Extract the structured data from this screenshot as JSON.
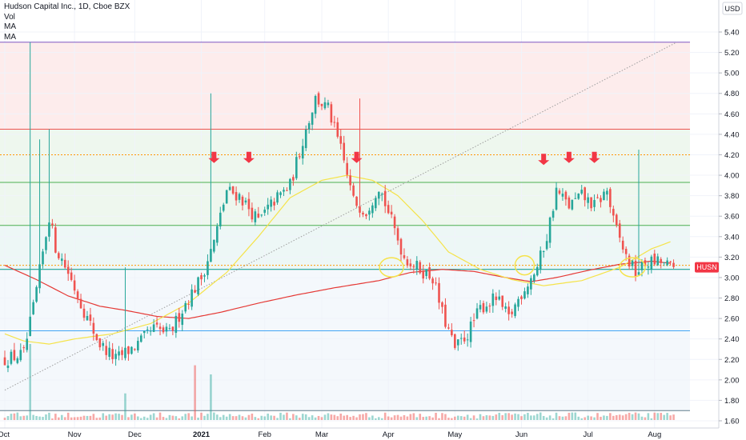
{
  "legend": {
    "title": "Hudson Capital Inc., 1D, Cboe BZX",
    "lines": [
      "Vol",
      "MA",
      "MA"
    ]
  },
  "axis": {
    "currency": "USD",
    "price_label": "HUSN",
    "current_price": 3.1
  },
  "colors": {
    "up": "#26a69a",
    "down": "#ef5350",
    "ma_slow": "#e53935",
    "ma_fast": "#f5e34a",
    "level": "#4caf50",
    "resistance": "#ef5350",
    "trendline": "#9e9e9e",
    "highlight": "#f5e34a",
    "arrow": "#f23645",
    "price_tag": "#f23645"
  },
  "chart_data": {
    "type": "candlestick",
    "y_ticks": [
      "1.60",
      "1.80",
      "2.00",
      "2.20",
      "2.40",
      "2.60",
      "2.80",
      "3.00",
      "3.20",
      "3.40",
      "3.60",
      "3.80",
      "4.00",
      "4.20",
      "4.40",
      "4.60",
      "4.80",
      "5.00",
      "5.20",
      "5.40"
    ],
    "ylim": [
      1.57,
      5.6
    ],
    "x_ticks": [
      {
        "label": "Oct",
        "bold": false
      },
      {
        "label": "Nov",
        "bold": false
      },
      {
        "label": "Dec",
        "bold": false
      },
      {
        "label": "2021",
        "bold": true
      },
      {
        "label": "Feb",
        "bold": false
      },
      {
        "label": "Mar",
        "bold": false
      },
      {
        "label": "Apr",
        "bold": false
      },
      {
        "label": "May",
        "bold": false
      },
      {
        "label": "Jun",
        "bold": false
      },
      {
        "label": "Jul",
        "bold": false
      },
      {
        "label": "Aug",
        "bold": false
      }
    ],
    "waypoints": [
      [
        0,
        2.2
      ],
      [
        6,
        2.25
      ],
      [
        9,
        2.7
      ],
      [
        14,
        3.6
      ],
      [
        16,
        3.3
      ],
      [
        20,
        3.05
      ],
      [
        26,
        2.6
      ],
      [
        30,
        2.35
      ],
      [
        35,
        2.2
      ],
      [
        42,
        2.35
      ],
      [
        47,
        2.5
      ],
      [
        52,
        2.45
      ],
      [
        57,
        2.75
      ],
      [
        62,
        3.0
      ],
      [
        66,
        3.35
      ],
      [
        70,
        3.85
      ],
      [
        74,
        3.8
      ],
      [
        80,
        3.55
      ],
      [
        85,
        3.75
      ],
      [
        90,
        3.9
      ],
      [
        95,
        4.45
      ],
      [
        98,
        4.75
      ],
      [
        102,
        4.65
      ],
      [
        106,
        4.25
      ],
      [
        110,
        3.75
      ],
      [
        114,
        3.65
      ],
      [
        118,
        3.9
      ],
      [
        122,
        3.55
      ],
      [
        126,
        3.2
      ],
      [
        130,
        3.1
      ],
      [
        135,
        3.0
      ],
      [
        138,
        2.65
      ],
      [
        142,
        2.3
      ],
      [
        146,
        2.45
      ],
      [
        150,
        2.7
      ],
      [
        155,
        2.8
      ],
      [
        159,
        2.6
      ],
      [
        163,
        2.85
      ],
      [
        168,
        3.1
      ],
      [
        171,
        3.4
      ],
      [
        174,
        3.85
      ],
      [
        178,
        3.7
      ],
      [
        182,
        3.8
      ],
      [
        186,
        3.7
      ],
      [
        190,
        3.85
      ],
      [
        192,
        3.55
      ],
      [
        196,
        3.2
      ],
      [
        199,
        3.05
      ],
      [
        203,
        3.15
      ],
      [
        207,
        3.15
      ],
      [
        210,
        3.1
      ]
    ],
    "spikes": [
      {
        "i": 8,
        "high": 5.3
      },
      {
        "i": 11,
        "high": 4.35
      },
      {
        "i": 14,
        "high": 4.45
      },
      {
        "i": 38,
        "high": 3.1
      },
      {
        "i": 65,
        "high": 4.8
      },
      {
        "i": 112,
        "high": 4.75
      },
      {
        "i": 200,
        "high": 4.25
      }
    ],
    "vol_spikes": [
      {
        "i": 8,
        "v": 1.0
      },
      {
        "i": 38,
        "v": 0.35
      },
      {
        "i": 60,
        "v": 0.72
      },
      {
        "i": 65,
        "v": 0.6
      }
    ],
    "ma_fast": [
      [
        0,
        2.45
      ],
      [
        6,
        2.38
      ],
      [
        14,
        2.35
      ],
      [
        22,
        2.4
      ],
      [
        34,
        2.45
      ],
      [
        46,
        2.55
      ],
      [
        58,
        2.75
      ],
      [
        70,
        3.05
      ],
      [
        80,
        3.4
      ],
      [
        90,
        3.78
      ],
      [
        100,
        3.95
      ],
      [
        108,
        4.0
      ],
      [
        116,
        3.95
      ],
      [
        124,
        3.8
      ],
      [
        132,
        3.55
      ],
      [
        140,
        3.25
      ],
      [
        150,
        3.08
      ],
      [
        160,
        2.98
      ],
      [
        170,
        2.92
      ],
      [
        182,
        2.97
      ],
      [
        194,
        3.1
      ],
      [
        204,
        3.28
      ],
      [
        210,
        3.35
      ]
    ],
    "ma_slow": [
      [
        0,
        3.12
      ],
      [
        10,
        2.98
      ],
      [
        20,
        2.82
      ],
      [
        30,
        2.72
      ],
      [
        38,
        2.68
      ],
      [
        48,
        2.62
      ],
      [
        58,
        2.6
      ],
      [
        68,
        2.66
      ],
      [
        80,
        2.75
      ],
      [
        92,
        2.83
      ],
      [
        104,
        2.9
      ],
      [
        118,
        2.97
      ],
      [
        128,
        3.05
      ],
      [
        138,
        3.08
      ],
      [
        148,
        3.06
      ],
      [
        158,
        3.0
      ],
      [
        166,
        2.96
      ],
      [
        174,
        3.0
      ],
      [
        184,
        3.07
      ],
      [
        194,
        3.13
      ],
      [
        204,
        3.16
      ],
      [
        210,
        3.14
      ]
    ],
    "levels": [
      {
        "price": 5.3,
        "color": "#7e57c2",
        "dash": false
      },
      {
        "price": 4.45,
        "color": "#ef5350",
        "dash": false
      },
      {
        "price": 4.2,
        "color": "#ff9800",
        "dash": true
      },
      {
        "price": 3.93,
        "color": "#4caf50",
        "dash": false
      },
      {
        "price": 3.51,
        "color": "#4caf50",
        "dash": false
      },
      {
        "price": 3.12,
        "color": "#ff9800",
        "dash": true
      },
      {
        "price": 3.08,
        "color": "#009688",
        "dash": false
      },
      {
        "price": 2.48,
        "color": "#42a5f5",
        "dash": false
      },
      {
        "price": 1.7,
        "color": "#607d8b",
        "dash": false
      }
    ],
    "zones": [
      {
        "from": 4.45,
        "to": 5.3,
        "color": "#fdecec"
      },
      {
        "from": 3.51,
        "to": 4.45,
        "color": "#eef7ee"
      },
      {
        "from": 3.08,
        "to": 3.51,
        "color": "#edf7f6"
      },
      {
        "from": 1.7,
        "to": 3.08,
        "color": "#f4f8fc"
      }
    ],
    "trendline": {
      "i1": 0,
      "p1": 1.9,
      "i2": 212,
      "p2": 5.3
    },
    "arrows": [
      {
        "i": 66,
        "price": 4.12
      },
      {
        "i": 77,
        "price": 4.12
      },
      {
        "i": 111,
        "price": 4.12
      },
      {
        "i": 170,
        "price": 4.1
      },
      {
        "i": 178,
        "price": 4.12
      },
      {
        "i": 186,
        "price": 4.12
      }
    ],
    "ellipses": [
      {
        "i": 122,
        "price": 3.1,
        "rx": 15,
        "ry": 12
      },
      {
        "i": 164,
        "price": 3.12,
        "rx": 12,
        "ry": 12
      },
      {
        "i": 198,
        "price": 3.1,
        "rx": 16,
        "ry": 12
      }
    ],
    "x_tick_indices": [
      0,
      22,
      41,
      62,
      82,
      100,
      121,
      142,
      163,
      184,
      205
    ]
  }
}
